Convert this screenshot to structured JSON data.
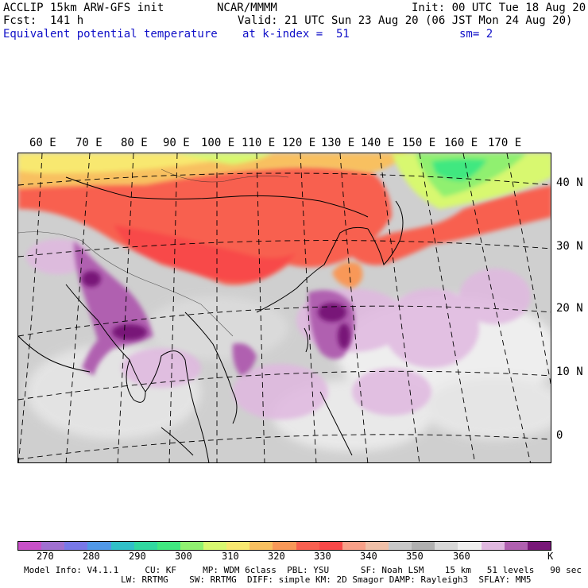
{
  "header": {
    "model_line": "ACCLIP 15km ARW-GFS init",
    "fcst_line": "Fcst:  141 h",
    "field_name": "Equivalent potential temperature",
    "org": "NCAR/MMMM",
    "valid": "Valid: 21 UTC Sun 23 Aug 20 (06 JST Mon 24 Aug 20)",
    "init": "Init: 00 UTC Tue 18 Aug 20",
    "level": "at k-index =  51",
    "smooth": "sm= 2"
  },
  "map": {
    "lon_labels": [
      "60 E",
      "70 E",
      "80 E",
      "90 E",
      "100 E",
      "110 E",
      "120 E",
      "130 E",
      "140 E",
      "150 E",
      "160 E",
      "170 E"
    ],
    "lat_labels": [
      "40 N",
      "30 N",
      "20 N",
      "10 N",
      "0"
    ]
  },
  "colorbar": {
    "colors": [
      "#c850c8",
      "#a070d0",
      "#7878e8",
      "#5098e8",
      "#30c0c8",
      "#30d8a0",
      "#40e880",
      "#90f070",
      "#d8f870",
      "#f8e870",
      "#f8c060",
      "#f89858",
      "#f86050",
      "#f84848",
      "#f8a088",
      "#f0c0a8",
      "#c8c8c8",
      "#b0b0b0",
      "#d8d8d8",
      "#f0f0f0",
      "#e0b8e0",
      "#b060b0",
      "#781878"
    ],
    "labels": [
      "270",
      "280",
      "290",
      "300",
      "310",
      "320",
      "330",
      "340",
      "350",
      "360"
    ],
    "unit": "K"
  },
  "footer": {
    "line1": "Model Info: V4.1.1     CU: KF     MP: WDM 6class  PBL: YSU      SF: Noah LSM    15 km   51 levels   90 sec",
    "line2": "LW: RRTMG    SW: RRTMG  DIFF: simple KM: 2D Smagor DAMP: Rayleigh3  SFLAY: MM5"
  }
}
